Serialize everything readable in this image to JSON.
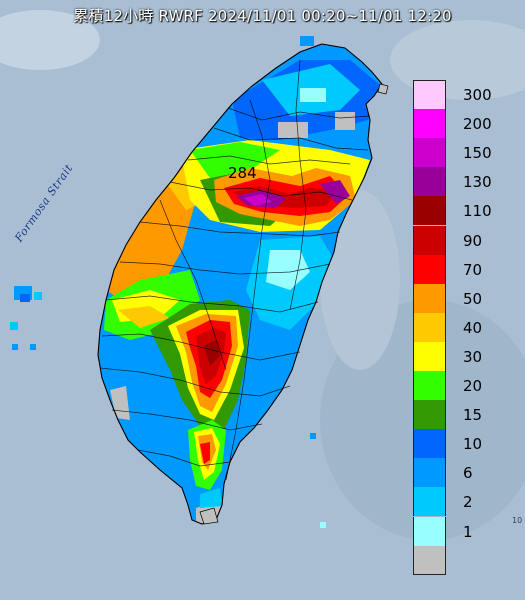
{
  "title": "累積12小時 RWRF 2024/11/01 00:20~11/01 12:20",
  "strait_label": "Formosa Strait",
  "max_value_label": "284",
  "corner_mark": "10",
  "legend": [
    {
      "label": "300",
      "color": "#fec9fe"
    },
    {
      "label": "200",
      "color": "#fe00fe"
    },
    {
      "label": "150",
      "color": "#cc00cc"
    },
    {
      "label": "130",
      "color": "#990099"
    },
    {
      "label": "110",
      "color": "#990000"
    },
    {
      "label": "90",
      "color": "#cc0000"
    },
    {
      "label": "70",
      "color": "#fe0000"
    },
    {
      "label": "50",
      "color": "#fe9900"
    },
    {
      "label": "40",
      "color": "#fec900"
    },
    {
      "label": "30",
      "color": "#fefe00"
    },
    {
      "label": "20",
      "color": "#33fe00"
    },
    {
      "label": "15",
      "color": "#339900"
    },
    {
      "label": "10",
      "color": "#0066fe"
    },
    {
      "label": "6",
      "color": "#0099fe"
    },
    {
      "label": "2",
      "color": "#00c9fe"
    },
    {
      "label": "1",
      "color": "#99feff"
    },
    {
      "label": "",
      "color": "#c0c0c0"
    }
  ]
}
